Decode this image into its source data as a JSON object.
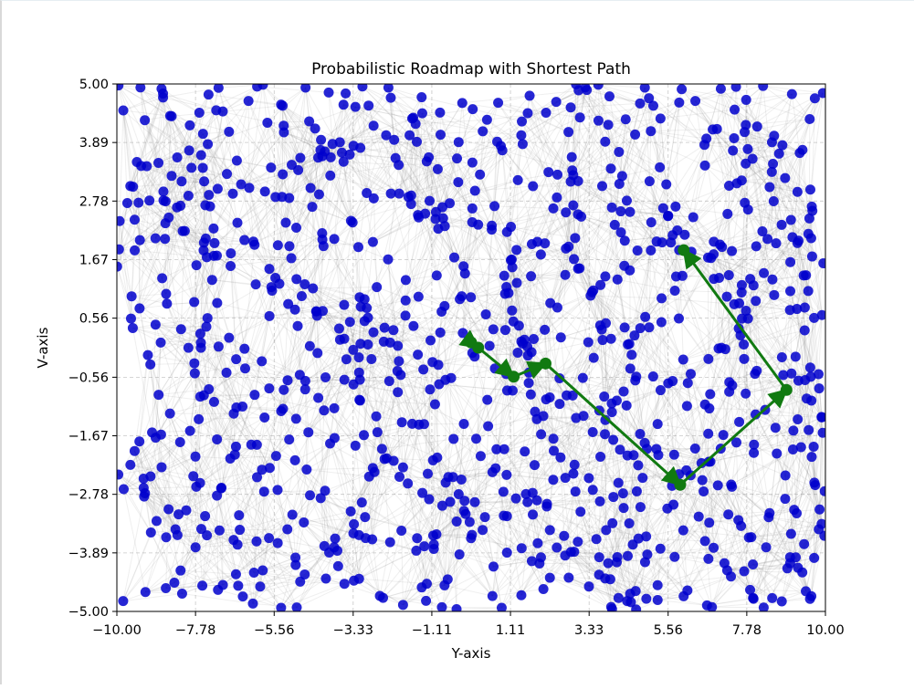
{
  "chart_data": {
    "type": "scatter",
    "title": "Probabilistic Roadmap with Shortest Path",
    "xlabel": "Y-axis",
    "ylabel": "V-axis",
    "xlim": [
      -10,
      10
    ],
    "ylim": [
      -5,
      5
    ],
    "xticks": [
      "−10.00",
      "−7.78",
      "−5.56",
      "−3.33",
      "−1.11",
      "1.11",
      "3.33",
      "5.56",
      "7.78",
      "10.00"
    ],
    "yticks": [
      "−5.00",
      "−3.89",
      "−2.78",
      "−1.67",
      "−0.56",
      "0.56",
      "1.67",
      "2.78",
      "3.89",
      "5.00"
    ],
    "xtick_values": [
      -10,
      -7.78,
      -5.56,
      -3.33,
      -1.11,
      1.11,
      3.33,
      5.56,
      7.78,
      10
    ],
    "ytick_values": [
      -5,
      -3.89,
      -2.78,
      -1.67,
      -0.56,
      0.56,
      1.67,
      2.78,
      3.89,
      5
    ],
    "grid": true,
    "colors": {
      "nodes": "#0000cc",
      "edges": "#808080",
      "path": "#117a11"
    },
    "sampled_nodes_estimate": 1000,
    "node_seed": 42,
    "shortest_path": {
      "x": [
        0.0,
        0.2,
        1.2,
        2.1,
        5.9,
        8.9,
        6.0
      ],
      "y": [
        0.1,
        0.0,
        -0.55,
        -0.3,
        -2.6,
        -0.8,
        1.85
      ]
    }
  }
}
